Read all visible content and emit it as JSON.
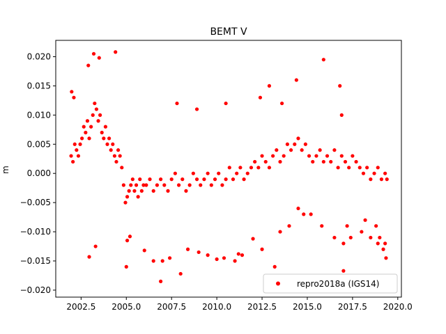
{
  "chart_data": {
    "type": "scatter",
    "title": "BEMT V",
    "xlabel": "",
    "ylabel": "m",
    "xlim": [
      2001.1,
      2020.2
    ],
    "ylim": [
      -0.0212,
      0.0228
    ],
    "xticks": [
      2002.5,
      2005.0,
      2007.5,
      2010.0,
      2012.5,
      2015.0,
      2017.5,
      2020.0
    ],
    "yticks": [
      -0.02,
      -0.015,
      -0.01,
      -0.005,
      0.0,
      0.005,
      0.01,
      0.015,
      0.02
    ],
    "xtick_labels": [
      "2002.5",
      "2005.0",
      "2007.5",
      "2010.0",
      "2012.5",
      "2015.0",
      "2017.5",
      "2020.0"
    ],
    "ytick_labels": [
      "−0.020",
      "−0.015",
      "−0.010",
      "−0.005",
      "0.000",
      "0.005",
      "0.010",
      "0.015",
      "0.020"
    ],
    "legend": {
      "position": "lower-right",
      "entries": [
        "repro2018a (IGS14)"
      ]
    },
    "grid": false,
    "series": [
      {
        "name": "repro2018a (IGS14)",
        "color": "#ff0000",
        "marker": "circle",
        "x": [
          2001.95,
          2002.05,
          2002.15,
          2002.25,
          2002.35,
          2002.45,
          2002.55,
          2002.65,
          2002.75,
          2002.85,
          2002.95,
          2003.05,
          2003.15,
          2003.25,
          2003.35,
          2003.45,
          2003.55,
          2003.65,
          2003.75,
          2003.85,
          2003.95,
          2004.05,
          2004.15,
          2004.25,
          2004.35,
          2004.45,
          2004.55,
          2004.65,
          2004.75,
          2004.85,
          2004.95,
          2005.05,
          2005.15,
          2005.25,
          2005.35,
          2005.45,
          2005.55,
          2005.65,
          2005.75,
          2005.85,
          2005.95,
          2006.1,
          2006.3,
          2006.5,
          2006.7,
          2006.9,
          2007.1,
          2007.3,
          2007.5,
          2007.7,
          2007.9,
          2008.1,
          2008.3,
          2008.5,
          2008.7,
          2008.9,
          2009.1,
          2009.3,
          2009.5,
          2009.7,
          2009.9,
          2010.1,
          2010.3,
          2010.5,
          2010.7,
          2010.9,
          2011.1,
          2011.3,
          2011.5,
          2011.7,
          2011.9,
          2012.1,
          2012.3,
          2012.5,
          2012.7,
          2012.9,
          2013.1,
          2013.3,
          2013.5,
          2013.7,
          2013.9,
          2014.1,
          2014.3,
          2014.5,
          2014.7,
          2014.9,
          2015.1,
          2015.3,
          2015.5,
          2015.7,
          2015.9,
          2016.1,
          2016.3,
          2016.5,
          2016.7,
          2016.9,
          2017.1,
          2017.3,
          2017.5,
          2017.7,
          2017.9,
          2018.1,
          2018.3,
          2018.5,
          2018.7,
          2018.9,
          2019.1,
          2019.3,
          2019.4,
          2002.9,
          2003.2,
          2003.5,
          2004.4,
          2001.98,
          2002.1,
          2002.95,
          2003.3,
          2005.0,
          2005.05,
          2005.2,
          2006.0,
          2006.5,
          2006.9,
          2007.0,
          2007.4,
          2008.0,
          2008.4,
          2009.0,
          2009.5,
          2010.0,
          2010.4,
          2011.0,
          2011.2,
          2011.4,
          2012.0,
          2012.5,
          2013.2,
          2013.5,
          2014.0,
          2014.5,
          2014.8,
          2015.2,
          2015.8,
          2016.5,
          2017.0,
          2017.4,
          2018.0,
          2018.5,
          2018.9,
          2019.2,
          2019.35,
          2012.9,
          2013.6,
          2014.4,
          2015.9,
          2016.8,
          2016.9,
          2017.0,
          2017.2,
          2018.2,
          2018.8,
          2019.0,
          2019.3,
          2007.8,
          2008.9,
          2010.5,
          2012.4
        ],
        "y": [
          0.003,
          0.002,
          0.005,
          0.004,
          0.003,
          0.005,
          0.006,
          0.008,
          0.007,
          0.009,
          0.006,
          0.008,
          0.01,
          0.012,
          0.011,
          0.009,
          0.01,
          0.007,
          0.006,
          0.008,
          0.005,
          0.006,
          0.004,
          0.005,
          0.003,
          0.002,
          0.004,
          0.003,
          0.001,
          -0.002,
          -0.005,
          -0.004,
          -0.003,
          -0.002,
          -0.001,
          -0.003,
          -0.002,
          -0.004,
          -0.001,
          -0.003,
          -0.002,
          -0.002,
          -0.001,
          -0.003,
          -0.002,
          -0.001,
          -0.002,
          -0.003,
          -0.001,
          0.0,
          -0.002,
          -0.001,
          -0.003,
          -0.002,
          0.0,
          -0.001,
          -0.002,
          -0.001,
          0.0,
          -0.002,
          -0.001,
          0.0,
          -0.002,
          -0.001,
          0.001,
          -0.001,
          0.0,
          0.001,
          -0.001,
          0.0,
          0.001,
          0.002,
          0.001,
          0.003,
          0.002,
          0.001,
          0.003,
          0.004,
          0.002,
          0.003,
          0.005,
          0.004,
          0.005,
          0.006,
          0.004,
          0.005,
          0.003,
          0.002,
          0.003,
          0.004,
          0.002,
          0.003,
          0.002,
          0.004,
          0.001,
          0.003,
          0.002,
          0.001,
          0.003,
          0.002,
          0.001,
          0.0,
          0.001,
          -0.001,
          0.0,
          0.001,
          -0.001,
          0.0,
          -0.001,
          0.0185,
          0.0205,
          0.0198,
          0.0208,
          0.014,
          0.013,
          -0.0143,
          -0.0125,
          -0.016,
          -0.0115,
          -0.0108,
          -0.0132,
          -0.015,
          -0.0185,
          -0.015,
          -0.0145,
          -0.0172,
          -0.013,
          -0.0135,
          -0.014,
          -0.0147,
          -0.0145,
          -0.015,
          -0.0138,
          -0.014,
          -0.0112,
          -0.013,
          -0.016,
          -0.01,
          -0.009,
          -0.006,
          -0.007,
          -0.007,
          -0.009,
          -0.011,
          -0.012,
          -0.011,
          -0.01,
          -0.011,
          -0.012,
          -0.013,
          -0.0145,
          0.015,
          0.012,
          0.016,
          0.0195,
          0.015,
          0.01,
          -0.0167,
          -0.009,
          -0.008,
          -0.009,
          -0.011,
          -0.012,
          0.012,
          0.011,
          0.012,
          0.013
        ]
      }
    ]
  }
}
